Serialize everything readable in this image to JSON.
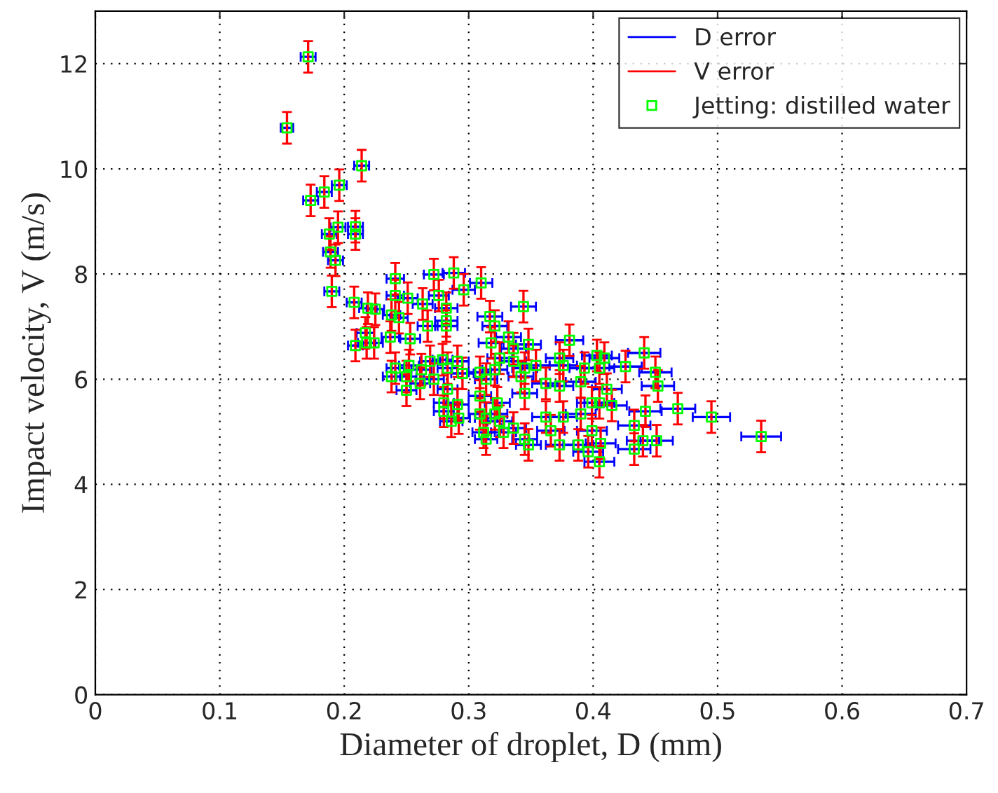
{
  "chart_data": {
    "type": "scatter",
    "xlabel": "Diameter of droplet, D (mm)",
    "ylabel": "Impact velocity, V (m/s)",
    "xlim": [
      0,
      0.7
    ],
    "xticks": [
      0,
      0.1,
      0.2,
      0.3,
      0.4,
      0.5,
      0.6,
      0.7
    ],
    "ylim": [
      0,
      13
    ],
    "yticks": [
      0,
      2,
      4,
      6,
      8,
      10,
      12
    ],
    "grid": true,
    "legend": "top right",
    "marker": "square",
    "series": [
      {
        "name": "D error",
        "type": "line",
        "color": "#0000ff",
        "values": [
          null,
          null
        ]
      },
      {
        "name": "V error",
        "type": "line",
        "color": "#ff0000",
        "values": [
          null,
          null
        ]
      },
      {
        "name": "Jetting: distilled water",
        "color": "#00ff00",
        "x": [
          0.171,
          0.154,
          0.214,
          0.196,
          0.184,
          0.173,
          0.195,
          0.209,
          0.209,
          0.188,
          0.189,
          0.193,
          0.19,
          0.241,
          0.272,
          0.288,
          0.296,
          0.31,
          0.241,
          0.251,
          0.263,
          0.276,
          0.282,
          0.208,
          0.219,
          0.225,
          0.238,
          0.244,
          0.267,
          0.282,
          0.282,
          0.317,
          0.321,
          0.344,
          0.217,
          0.218,
          0.224,
          0.209,
          0.237,
          0.253,
          0.318,
          0.332,
          0.381,
          0.241,
          0.252,
          0.262,
          0.269,
          0.279,
          0.283,
          0.291,
          0.295,
          0.238,
          0.25,
          0.261,
          0.25,
          0.272,
          0.283,
          0.309,
          0.314,
          0.321,
          0.325,
          0.336,
          0.336,
          0.345,
          0.342,
          0.354,
          0.373,
          0.376,
          0.362,
          0.373,
          0.39,
          0.348,
          0.345,
          0.309,
          0.28,
          0.28,
          0.286,
          0.292,
          0.291,
          0.323,
          0.309,
          0.314,
          0.312,
          0.314,
          0.325,
          0.328,
          0.336,
          0.345,
          0.348,
          0.362,
          0.366,
          0.376,
          0.373,
          0.39,
          0.388,
          0.321,
          0.403,
          0.409,
          0.441,
          0.393,
          0.405,
          0.426,
          0.45,
          0.452,
          0.411,
          0.399,
          0.405,
          0.415,
          0.442,
          0.468,
          0.495,
          0.535,
          0.433,
          0.399,
          0.44,
          0.451,
          0.433,
          0.406,
          0.396,
          0.405
        ],
        "values": [
          12.13,
          10.78,
          10.06,
          9.69,
          9.56,
          9.4,
          8.89,
          8.9,
          8.76,
          8.76,
          8.42,
          8.26,
          7.67,
          7.91,
          7.99,
          8.02,
          7.7,
          7.83,
          7.59,
          7.54,
          7.43,
          7.59,
          7.35,
          7.46,
          7.35,
          7.33,
          7.22,
          7.17,
          7.01,
          7.11,
          7.01,
          7.19,
          7.01,
          7.38,
          6.88,
          6.69,
          6.69,
          6.64,
          6.8,
          6.77,
          6.69,
          6.8,
          6.74,
          6.21,
          6.26,
          6.18,
          6.34,
          6.37,
          6.21,
          6.34,
          6.11,
          6.05,
          6.05,
          5.92,
          5.79,
          6.0,
          5.81,
          6.13,
          6.0,
          6.18,
          6.4,
          6.58,
          6.34,
          6.21,
          6.05,
          6.26,
          6.4,
          6.26,
          5.92,
          5.87,
          5.95,
          6.66,
          5.73,
          5.68,
          5.55,
          5.39,
          5.2,
          5.26,
          5.52,
          5.55,
          5.34,
          5.26,
          4.99,
          4.86,
          5.2,
          4.99,
          5.07,
          4.86,
          4.75,
          5.28,
          5.02,
          5.28,
          4.75,
          5.34,
          4.75,
          5.34,
          6.45,
          6.4,
          6.5,
          6.21,
          6.21,
          6.24,
          6.13,
          5.87,
          5.81,
          5.55,
          5.55,
          5.5,
          5.39,
          5.44,
          5.28,
          4.91,
          5.12,
          5.02,
          4.83,
          4.83,
          4.67,
          4.78,
          4.62,
          4.43
        ],
        "xerrors": [
          0.006,
          0.005,
          0.006,
          0.006,
          0.006,
          0.006,
          0.006,
          0.006,
          0.006,
          0.006,
          0.006,
          0.006,
          0.006,
          0.007,
          0.008,
          0.009,
          0.009,
          0.009,
          0.007,
          0.008,
          0.008,
          0.008,
          0.009,
          0.006,
          0.007,
          0.007,
          0.007,
          0.007,
          0.008,
          0.009,
          0.009,
          0.01,
          0.01,
          0.01,
          0.007,
          0.007,
          0.007,
          0.006,
          0.007,
          0.008,
          0.01,
          0.01,
          0.011,
          0.007,
          0.008,
          0.008,
          0.008,
          0.008,
          0.008,
          0.009,
          0.009,
          0.007,
          0.008,
          0.008,
          0.008,
          0.008,
          0.008,
          0.009,
          0.009,
          0.01,
          0.01,
          0.01,
          0.01,
          0.01,
          0.01,
          0.011,
          0.011,
          0.011,
          0.011,
          0.011,
          0.012,
          0.01,
          0.01,
          0.009,
          0.008,
          0.008,
          0.009,
          0.009,
          0.009,
          0.01,
          0.009,
          0.009,
          0.009,
          0.009,
          0.01,
          0.01,
          0.01,
          0.01,
          0.01,
          0.011,
          0.011,
          0.011,
          0.011,
          0.012,
          0.012,
          0.01,
          0.012,
          0.012,
          0.013,
          0.012,
          0.012,
          0.013,
          0.013,
          0.013,
          0.012,
          0.012,
          0.012,
          0.012,
          0.013,
          0.014,
          0.015,
          0.016,
          0.013,
          0.012,
          0.013,
          0.013,
          0.013,
          0.012,
          0.012,
          0.012
        ],
        "errors": [
          0.3,
          0.3,
          0.3,
          0.3,
          0.3,
          0.3,
          0.3,
          0.3,
          0.3,
          0.3,
          0.3,
          0.3,
          0.3,
          0.3,
          0.3,
          0.3,
          0.3,
          0.3,
          0.3,
          0.3,
          0.3,
          0.3,
          0.3,
          0.3,
          0.3,
          0.3,
          0.3,
          0.3,
          0.3,
          0.3,
          0.3,
          0.3,
          0.3,
          0.3,
          0.3,
          0.3,
          0.3,
          0.3,
          0.3,
          0.3,
          0.3,
          0.3,
          0.3,
          0.3,
          0.3,
          0.3,
          0.3,
          0.3,
          0.3,
          0.3,
          0.3,
          0.3,
          0.3,
          0.3,
          0.3,
          0.3,
          0.3,
          0.3,
          0.3,
          0.3,
          0.3,
          0.3,
          0.3,
          0.3,
          0.3,
          0.3,
          0.3,
          0.3,
          0.3,
          0.3,
          0.3,
          0.3,
          0.3,
          0.3,
          0.3,
          0.3,
          0.3,
          0.3,
          0.3,
          0.3,
          0.3,
          0.3,
          0.3,
          0.3,
          0.3,
          0.3,
          0.3,
          0.3,
          0.3,
          0.3,
          0.3,
          0.3,
          0.3,
          0.3,
          0.3,
          0.3,
          0.3,
          0.3,
          0.3,
          0.3,
          0.3,
          0.3,
          0.3,
          0.3,
          0.3,
          0.3,
          0.3,
          0.3,
          0.3,
          0.3,
          0.3,
          0.3,
          0.3,
          0.3,
          0.3,
          0.3,
          0.3,
          0.3,
          0.3,
          0.3
        ]
      }
    ]
  }
}
